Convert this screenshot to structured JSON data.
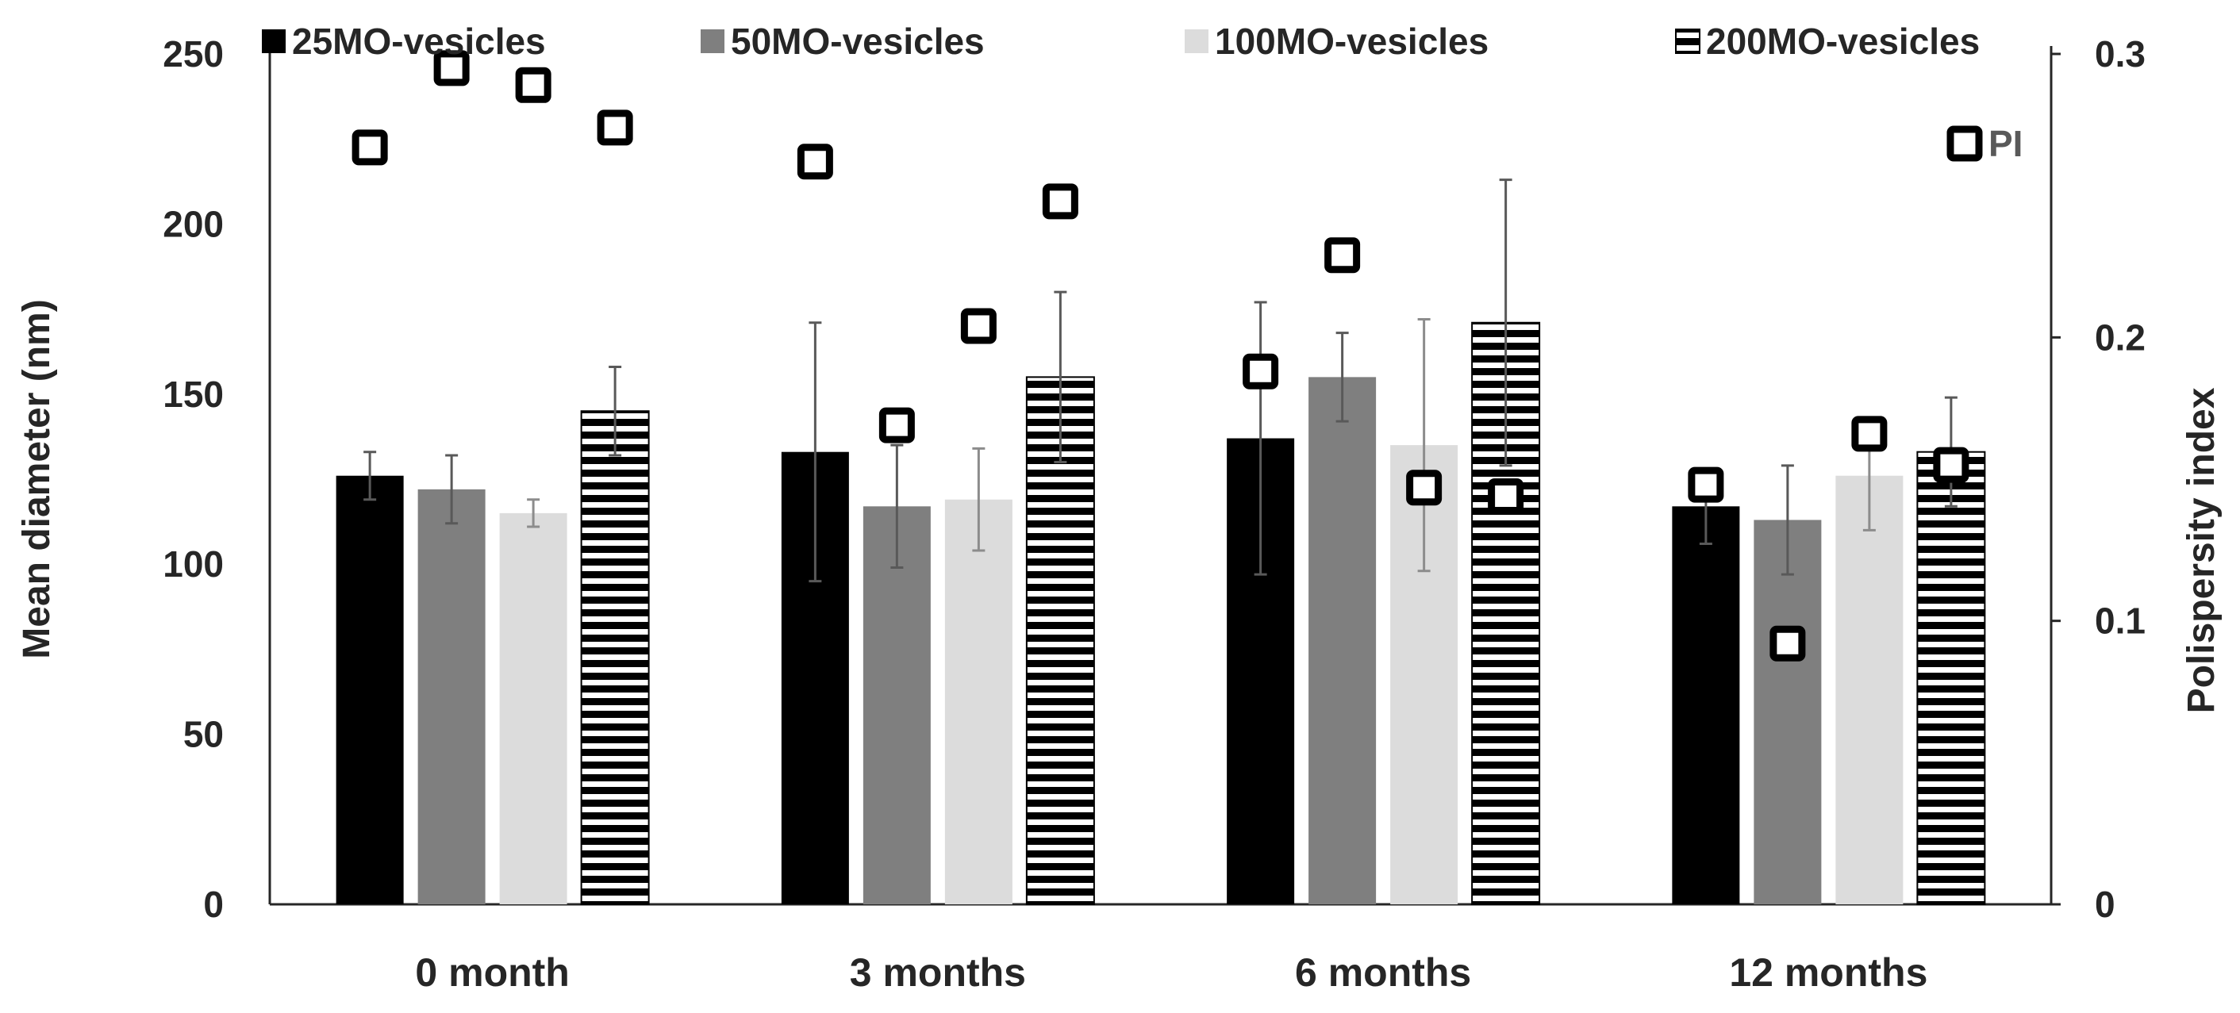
{
  "chart_data": {
    "type": "bar",
    "title": "",
    "categories": [
      "0 month",
      "3 months",
      "6 months",
      "12 months"
    ],
    "series": [
      {
        "name": "25MO-vesicles",
        "style": "solid-black",
        "color": "#000000",
        "values": [
          126,
          133,
          137,
          117
        ],
        "errors": [
          7,
          38,
          40,
          11
        ]
      },
      {
        "name": "50MO-vesicles",
        "style": "solid-gray",
        "color": "#7f7f7f",
        "values": [
          122,
          117,
          155,
          113
        ],
        "errors": [
          10,
          18,
          13,
          16
        ]
      },
      {
        "name": "100MO-vesicles",
        "style": "light-gray",
        "color": "#dcdcdc",
        "values": [
          115,
          119,
          135,
          126
        ],
        "errors": [
          4,
          15,
          37,
          16
        ]
      },
      {
        "name": "200MO-vesicles",
        "style": "horizontal-stripes",
        "color": "#000000",
        "values": [
          145,
          155,
          171,
          133
        ],
        "errors": [
          13,
          25,
          42,
          16
        ]
      }
    ],
    "pi_series": {
      "name": "PI",
      "axis": "right",
      "values": [
        [
          0.267,
          0.295,
          0.289,
          0.274
        ],
        [
          0.262,
          0.169,
          0.204,
          0.248
        ],
        [
          0.188,
          0.229,
          0.147,
          0.144
        ],
        [
          0.148,
          0.092,
          0.166,
          0.155
        ]
      ]
    },
    "y_left": {
      "label": "Mean diameter (nm)",
      "min": 0,
      "max": 250,
      "ticks": [
        "0",
        "50",
        "100",
        "150",
        "200",
        "250"
      ]
    },
    "y_right": {
      "label": "Polispersity index",
      "min": 0,
      "max": 0.3,
      "ticks": [
        "0",
        "0.1",
        "0.2",
        "0.3"
      ]
    },
    "xlabel": "",
    "grid": false,
    "legend_position": "top"
  }
}
